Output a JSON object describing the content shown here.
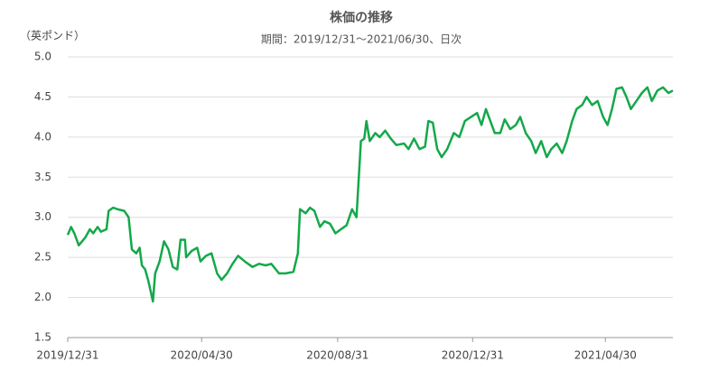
{
  "chart_data": {
    "type": "line",
    "title": "株価の推移",
    "subtitle": "期間：2019/12/31～2021/06/30、日次",
    "y_label": "（英ポンド）",
    "xlim": [
      "2019/12/31",
      "2021/06/30"
    ],
    "xticks": [
      "2019/12/31",
      "2020/04/30",
      "2020/08/31",
      "2020/12/31",
      "2021/04/30"
    ],
    "ylim": [
      1.5,
      5.0
    ],
    "yticks": [
      {
        "value": 1.5,
        "label": "1.5"
      },
      {
        "value": 2,
        "label": "2.0"
      },
      {
        "value": 2.5,
        "label": "2.5"
      },
      {
        "value": 3,
        "label": "3.0"
      },
      {
        "value": 3.5,
        "label": "3.5"
      },
      {
        "value": 4,
        "label": "4.0"
      },
      {
        "value": 4.5,
        "label": "4.5"
      },
      {
        "value": 5,
        "label": "5.0"
      }
    ],
    "grid": true,
    "x": [
      "2019/12/31",
      "2020/01/03",
      "2020/01/06",
      "2020/01/10",
      "2020/01/16",
      "2020/01/20",
      "2020/01/23",
      "2020/01/27",
      "2020/01/30",
      "2020/02/04",
      "2020/02/06",
      "2020/02/10",
      "2020/02/14",
      "2020/02/20",
      "2020/02/24",
      "2020/02/27",
      "2020/03/02",
      "2020/03/05",
      "2020/03/07",
      "2020/03/10",
      "2020/03/13",
      "2020/03/17",
      "2020/03/19",
      "2020/03/23",
      "2020/03/27",
      "2020/03/31",
      "2020/04/04",
      "2020/04/08",
      "2020/04/11",
      "2020/04/15",
      "2020/04/16",
      "2020/04/21",
      "2020/04/26",
      "2020/04/29",
      "2020/05/04",
      "2020/05/09",
      "2020/05/14",
      "2020/05/18",
      "2020/05/23",
      "2020/05/28",
      "2020/06/02",
      "2020/06/08",
      "2020/06/15",
      "2020/06/21",
      "2020/06/27",
      "2020/07/02",
      "2020/07/09",
      "2020/07/15",
      "2020/07/22",
      "2020/07/26",
      "2020/07/28",
      "2020/08/02",
      "2020/08/06",
      "2020/08/10",
      "2020/08/15",
      "2020/08/19",
      "2020/08/24",
      "2020/08/29",
      "2020/09/03",
      "2020/09/08",
      "2020/09/13",
      "2020/09/17",
      "2020/09/21",
      "2020/09/24",
      "2020/09/26",
      "2020/09/29",
      "2020/10/04",
      "2020/10/08",
      "2020/10/13",
      "2020/10/18",
      "2020/10/23",
      "2020/10/30",
      "2020/11/03",
      "2020/11/08",
      "2020/11/13",
      "2020/11/18",
      "2020/11/21",
      "2020/11/25",
      "2020/11/29",
      "2020/12/03",
      "2020/12/08",
      "2020/12/14",
      "2020/12/19",
      "2020/12/24",
      "2021/01/04",
      "2021/01/08",
      "2021/01/12",
      "2021/01/16",
      "2021/01/20",
      "2021/01/25",
      "2021/01/29",
      "2021/02/03",
      "2021/02/08",
      "2021/02/12",
      "2021/02/17",
      "2021/02/22",
      "2021/02/26",
      "2021/03/03",
      "2021/03/08",
      "2021/03/12",
      "2021/03/17",
      "2021/03/22",
      "2021/03/26",
      "2021/03/31",
      "2021/04/04",
      "2021/04/09",
      "2021/04/13",
      "2021/04/18",
      "2021/04/23",
      "2021/04/28",
      "2021/05/02",
      "2021/05/06",
      "2021/05/10",
      "2021/05/15",
      "2021/05/19",
      "2021/05/23",
      "2021/05/28",
      "2021/06/02",
      "2021/06/07",
      "2021/06/11",
      "2021/06/16",
      "2021/06/21",
      "2021/06/26",
      "2021/06/30"
    ],
    "series": [
      {
        "name": "株価",
        "color": "#14a84a",
        "values": [
          2.78,
          2.88,
          2.8,
          2.65,
          2.75,
          2.85,
          2.8,
          2.88,
          2.82,
          2.85,
          3.08,
          3.12,
          3.1,
          3.08,
          3.0,
          2.6,
          2.55,
          2.62,
          2.4,
          2.35,
          2.2,
          1.95,
          2.3,
          2.45,
          2.7,
          2.6,
          2.38,
          2.35,
          2.72,
          2.72,
          2.5,
          2.58,
          2.62,
          2.45,
          2.52,
          2.55,
          2.3,
          2.22,
          2.3,
          2.42,
          2.52,
          2.45,
          2.38,
          2.42,
          2.4,
          2.42,
          2.3,
          2.3,
          2.32,
          2.55,
          3.1,
          3.05,
          3.12,
          3.08,
          2.88,
          2.95,
          2.92,
          2.8,
          2.85,
          2.9,
          3.1,
          3.0,
          3.95,
          3.98,
          4.2,
          3.95,
          4.05,
          4.0,
          4.08,
          3.98,
          3.9,
          3.92,
          3.85,
          3.98,
          3.85,
          3.88,
          4.2,
          4.18,
          3.85,
          3.75,
          3.85,
          4.05,
          4.0,
          4.2,
          4.3,
          4.15,
          4.35,
          4.2,
          4.05,
          4.05,
          4.22,
          4.1,
          4.15,
          4.25,
          4.05,
          3.95,
          3.8,
          3.95,
          3.75,
          3.85,
          3.92,
          3.8,
          3.95,
          4.2,
          4.35,
          4.4,
          4.5,
          4.4,
          4.45,
          4.25,
          4.15,
          4.35,
          4.6,
          4.62,
          4.5,
          4.35,
          4.45,
          4.55,
          4.62,
          4.45,
          4.58,
          4.62,
          4.55,
          4.58
        ]
      }
    ]
  }
}
